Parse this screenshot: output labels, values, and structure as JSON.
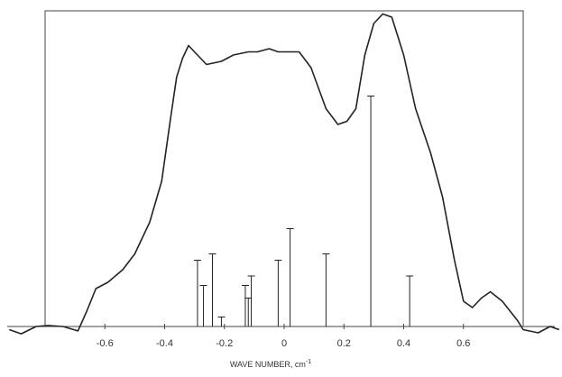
{
  "chart_data": {
    "type": "line",
    "xlabel": "WAVE NUMBER, cm",
    "xlabel_superscript": "-1",
    "xlim": [
      -0.8,
      0.8
    ],
    "ylim": [
      0,
      100
    ],
    "xticks": [
      -0.6,
      -0.4,
      -0.2,
      0,
      0.2,
      0.4,
      0.6
    ],
    "color": "#222222",
    "series": [
      {
        "x": [
          -0.92,
          -0.88,
          -0.83,
          -0.79,
          -0.74,
          -0.69,
          -0.66,
          -0.63,
          -0.59,
          -0.54,
          -0.5,
          -0.45,
          -0.41,
          -0.38,
          -0.36,
          -0.34,
          -0.32,
          -0.29,
          -0.26,
          -0.21,
          -0.17,
          -0.12,
          -0.09,
          -0.05,
          -0.02,
          0.05,
          0.09,
          0.14,
          0.18,
          0.21,
          0.24,
          0.27,
          0.3,
          0.33,
          0.36,
          0.4,
          0.44,
          0.49,
          0.53,
          0.57,
          0.6,
          0.63,
          0.66,
          0.69,
          0.73,
          0.78,
          0.8,
          0.85,
          0.89,
          0.92
        ],
        "values": [
          -1,
          -2.3,
          0,
          0.3,
          0,
          -1.4,
          5,
          12,
          14,
          18,
          23,
          33,
          46,
          66,
          79,
          85,
          89,
          86,
          83,
          84,
          86,
          87,
          87,
          88,
          87,
          87,
          82,
          69,
          64,
          65,
          69,
          86,
          96,
          99,
          98,
          86,
          69,
          55,
          41,
          21,
          8,
          6,
          9,
          11,
          8,
          2,
          -1,
          -2,
          0,
          -1
        ]
      }
    ],
    "sticks": {
      "x": [
        -0.29,
        -0.27,
        -0.24,
        -0.21,
        -0.13,
        -0.12,
        -0.11,
        -0.02,
        0.02,
        0.14,
        0.29,
        0.42
      ],
      "values": [
        21,
        13,
        23,
        3,
        13,
        9,
        16,
        21,
        31,
        23,
        73,
        16
      ]
    }
  }
}
